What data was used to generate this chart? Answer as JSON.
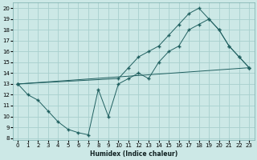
{
  "xlabel": "Humidex (Indice chaleur)",
  "xlim": [
    -0.5,
    23.5
  ],
  "ylim": [
    7.8,
    20.5
  ],
  "xticks": [
    0,
    1,
    2,
    3,
    4,
    5,
    6,
    7,
    8,
    9,
    10,
    11,
    12,
    13,
    14,
    15,
    16,
    17,
    18,
    19,
    20,
    21,
    22,
    23
  ],
  "yticks": [
    8,
    9,
    10,
    11,
    12,
    13,
    14,
    15,
    16,
    17,
    18,
    19,
    20
  ],
  "bg_color": "#cce8e6",
  "grid_color": "#a8d0ce",
  "line_color": "#206060",
  "curve1_x": [
    0,
    1,
    2,
    3,
    4,
    5,
    6,
    7,
    8,
    9,
    10,
    11,
    12,
    13,
    14,
    15,
    16,
    17,
    18,
    19,
    20,
    21,
    22,
    23
  ],
  "curve1_y": [
    13,
    12,
    11.5,
    10.5,
    9.5,
    8.8,
    8.5,
    8.3,
    12.5,
    10.0,
    13.0,
    13.5,
    14.0,
    13.5,
    15.0,
    16.0,
    16.5,
    18.0,
    18.5,
    19.0,
    18.0,
    16.5,
    15.5,
    14.5
  ],
  "curve2_x": [
    0,
    10,
    11,
    12,
    13,
    14,
    15,
    16,
    17,
    18,
    19,
    20,
    21,
    22,
    23
  ],
  "curve2_y": [
    13,
    13.5,
    14.5,
    15.5,
    16.0,
    16.5,
    17.5,
    18.5,
    19.5,
    20.0,
    19.0,
    18.0,
    16.5,
    15.5,
    14.5
  ],
  "curve3_x": [
    0,
    23
  ],
  "curve3_y": [
    13,
    14.5
  ]
}
